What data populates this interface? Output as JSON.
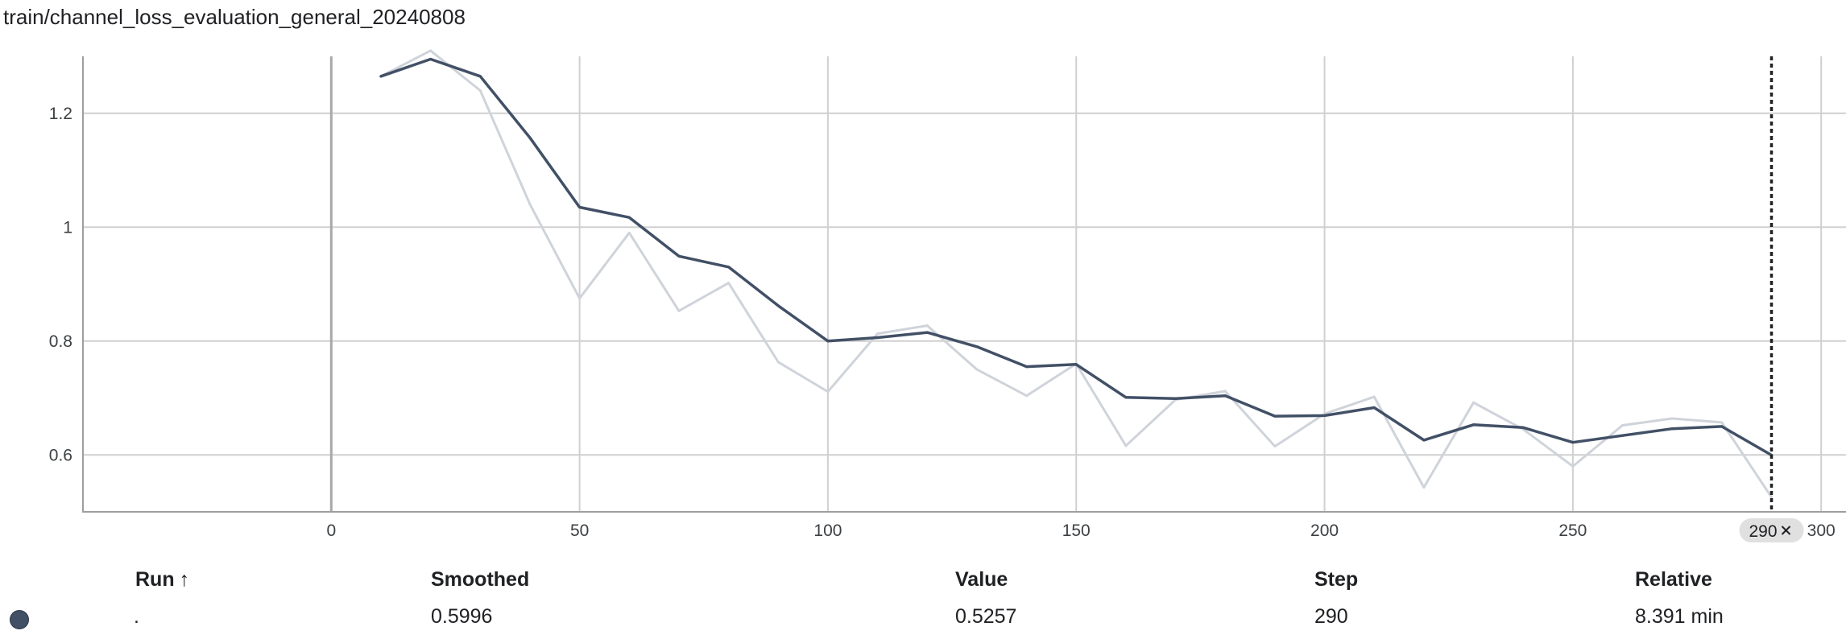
{
  "title": "train/channel_loss_evaluation_general_20240808",
  "chart_data": {
    "type": "line",
    "title": "train/channel_loss_evaluation_general_20240808",
    "xlim": [
      -50,
      305
    ],
    "ylim": [
      0.5,
      1.3
    ],
    "x_ticks": [
      0,
      50,
      100,
      150,
      200,
      250,
      300
    ],
    "y_ticks": [
      0.6,
      0.8,
      1.0,
      1.2
    ],
    "y_tick_labels": [
      "0.6",
      "0.8",
      "1",
      "1.2"
    ],
    "grid": true,
    "x": [
      10,
      20,
      30,
      40,
      50,
      60,
      70,
      80,
      90,
      100,
      110,
      120,
      130,
      140,
      150,
      160,
      170,
      180,
      190,
      200,
      210,
      220,
      230,
      240,
      250,
      260,
      270,
      280,
      290
    ],
    "series": [
      {
        "key": "raw",
        "color": "#cfd3da",
        "values": [
          1.265,
          1.31,
          1.24,
          1.04,
          0.875,
          0.99,
          0.853,
          0.902,
          0.763,
          0.711,
          0.813,
          0.827,
          0.75,
          0.704,
          0.76,
          0.616,
          0.697,
          0.712,
          0.615,
          0.672,
          0.702,
          0.543,
          0.692,
          0.645,
          0.58,
          0.652,
          0.664,
          0.657,
          0.5257
        ]
      },
      {
        "key": "smoothed",
        "color": "#425066",
        "values": [
          1.265,
          1.295,
          1.265,
          1.157,
          1.035,
          1.017,
          0.949,
          0.93,
          0.862,
          0.8,
          0.806,
          0.815,
          0.79,
          0.755,
          0.759,
          0.701,
          0.699,
          0.704,
          0.668,
          0.669,
          0.683,
          0.626,
          0.653,
          0.648,
          0.622,
          0.634,
          0.646,
          0.65,
          0.5996
        ]
      }
    ],
    "hover": {
      "x": 290,
      "label": "290"
    }
  },
  "table": {
    "headers": {
      "run": "Run",
      "smoothed": "Smoothed",
      "value": "Value",
      "step": "Step",
      "relative": "Relative"
    },
    "sort_arrow": "↑",
    "row": {
      "run": ".",
      "smoothed": "0.5996",
      "value": "0.5257",
      "step": "290",
      "relative": "8.391 min",
      "color": "#425066"
    }
  }
}
